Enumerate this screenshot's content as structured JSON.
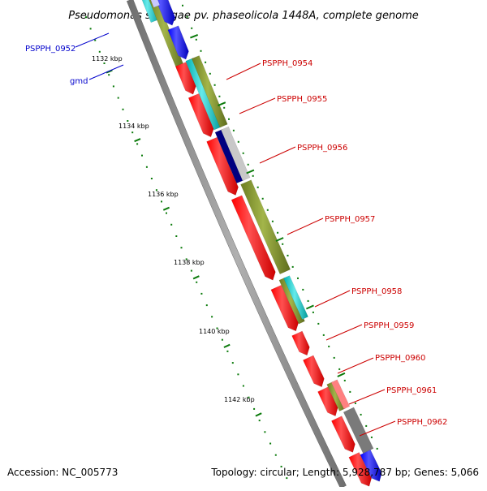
{
  "title": "Pseudomonas syringae pv. phaseolicola 1448A, complete genome",
  "accession": "Accession: NC_005773",
  "summary": "Topology: circular; Length: 5,928,787 bp; Genes: 5,066",
  "kbp_labels": [
    "1132 kbp",
    "1134 kbp",
    "1136 kbp",
    "1138 kbp",
    "1140 kbp",
    "1142 kbp"
  ],
  "gene_labels": [
    "PSPPH_0952",
    "gmd",
    "PSPPH_0954",
    "PSPPH_0955",
    "PSPPH_0956",
    "PSPPH_0957",
    "PSPPH_0958",
    "PSPPH_0959",
    "PSPPH_0960",
    "PSPPH_0961",
    "PSPPH_0962"
  ],
  "colors": {
    "cds": "#ff0000",
    "cds_blue": "#0000ff",
    "cyan": "#00cccc",
    "olive": "#7a8c2a",
    "navy": "#000080",
    "gray": "#999999",
    "light_gray": "#c8c8c8",
    "pink": "#ff8080",
    "backbone": "#808080",
    "tick": "#0a7a0a",
    "label_red": "#cc0000",
    "label_blue": "#0000cc"
  }
}
